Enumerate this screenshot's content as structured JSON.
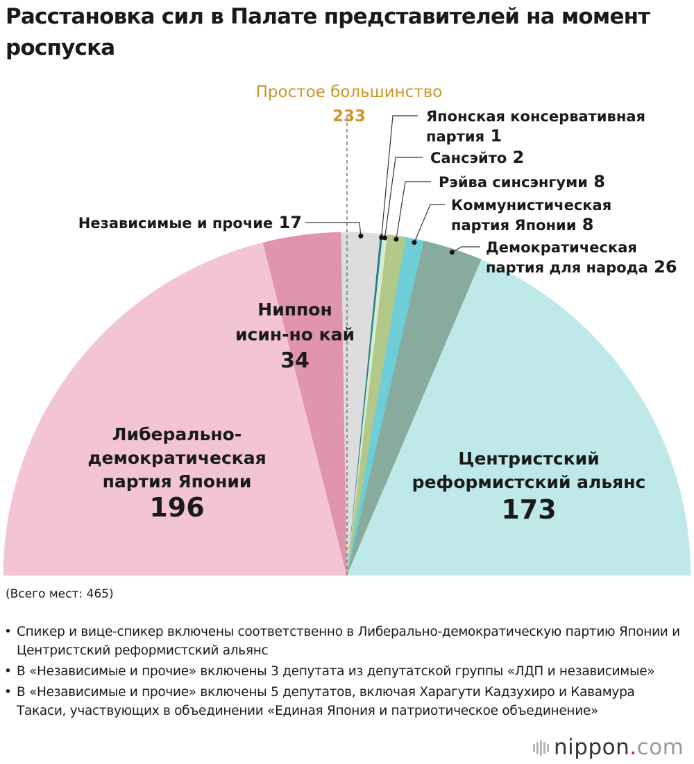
{
  "header": {
    "title": "Расстановка сил в Палате представителей на момент роспуска"
  },
  "chart_data": {
    "type": "pie",
    "variant": "semicircle",
    "total_seats": 465,
    "total_label": "(Всего мест: 465)",
    "majority": {
      "label": "Простое большинство",
      "value": 233
    },
    "segments": [
      {
        "name": "Либерально-демократическая партия Японии",
        "label_lines": [
          "Либерально-",
          "демократическая",
          "партия Японии"
        ],
        "value": 196,
        "color": "#f2c4d4",
        "label_mode": "inside"
      },
      {
        "name": "Ниппон исин-но кай",
        "label_lines": [
          "Ниппон",
          "исин-но кай"
        ],
        "value": 34,
        "color": "#e195ad",
        "label_mode": "inside"
      },
      {
        "name": "Независимые и прочие",
        "label_lines": [
          "Независимые и прочие"
        ],
        "value": 17,
        "color": "#dddddd",
        "label_mode": "callout"
      },
      {
        "name": "Японская консервативная партия",
        "label_lines": [
          "Японская консервативная",
          "партия"
        ],
        "value": 1,
        "color": "#2a7f8a",
        "label_mode": "callout"
      },
      {
        "name": "Сансэйто",
        "label_lines": [
          "Сансэйто"
        ],
        "value": 2,
        "color": "#d8ecd4",
        "label_mode": "callout"
      },
      {
        "name": "Рэйва синсэнгуми",
        "label_lines": [
          "Рэйва синсэнгуми"
        ],
        "value": 8,
        "color": "#b3c98a",
        "label_mode": "callout"
      },
      {
        "name": "Коммунистическая партия Японии",
        "label_lines": [
          "Коммунистическая",
          "партия Японии"
        ],
        "value": 8,
        "color": "#6ecdd6",
        "label_mode": "callout"
      },
      {
        "name": "Демократическая партия для народа",
        "label_lines": [
          "Демократическая",
          "партия для народа"
        ],
        "value": 26,
        "color": "#87ab9c",
        "label_mode": "callout"
      },
      {
        "name": "Центристский реформистский альянс",
        "label_lines": [
          "Центристский",
          "реформистский альянс"
        ],
        "value": 173,
        "color": "#bfe9e9",
        "label_mode": "inside"
      }
    ]
  },
  "notes": [
    "Спикер и вице-спикер включены соответственно в Либерально-демократическую партию Японии и Центристский реформистский альянс",
    "В «Независимые и прочие» включены 3 депутата из депутатской группы «ЛДП и независимые»",
    "В «Независимые и прочие» включены 5 депутатов, включая Харагути Кадзухиро и Кавамура Такаси, участвующих в объединении «Единая Япония и патриотическое объединение»"
  ],
  "branding": {
    "logo_name": "nippon",
    "logo_dot": ".",
    "logo_tld": "com"
  },
  "colors": {
    "majority": "#c9962a",
    "leader_line": "#333333",
    "text": "#1a1a1a"
  }
}
